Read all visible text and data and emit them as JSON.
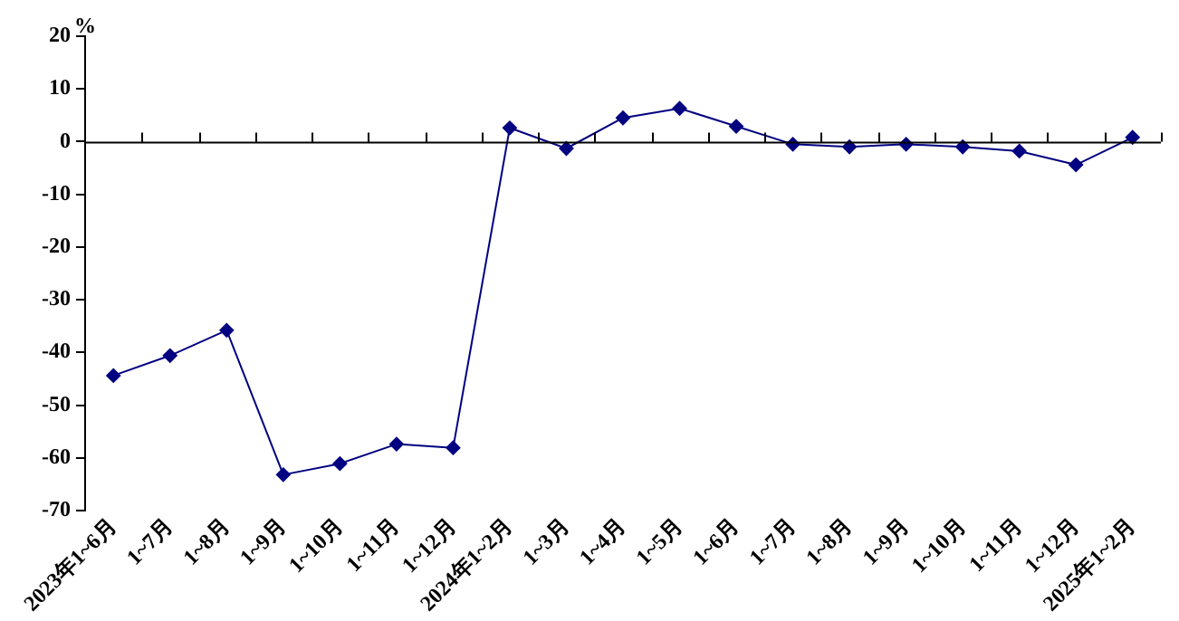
{
  "chart_data": {
    "type": "line",
    "ylabel": "%",
    "categories": [
      "2023年1~6月",
      "1~7月",
      "1~8月",
      "1~9月",
      "1~10月",
      "1~11月",
      "1~12月",
      "2024年1~2月",
      "1~3月",
      "1~4月",
      "1~5月",
      "1~6月",
      "1~7月",
      "1~8月",
      "1~9月",
      "1~10月",
      "1~11月",
      "1~12月",
      "2025年1~2月"
    ],
    "series": [
      {
        "color": "#000080",
        "values": [
          -44.4,
          -40.6,
          -35.8,
          -63.2,
          -61.1,
          -57.4,
          -58.1,
          2.6,
          -1.3,
          4.5,
          6.3,
          2.9,
          -0.5,
          -1.0,
          -0.5,
          -1.0,
          -1.8,
          -4.4,
          0.8
        ]
      }
    ],
    "ylim": [
      -70,
      20
    ],
    "yticks": [
      -70,
      -60,
      -50,
      -40,
      -30,
      -20,
      -10,
      0,
      10,
      20
    ],
    "legend": false,
    "marker": "diamond",
    "line_style": "solid"
  }
}
